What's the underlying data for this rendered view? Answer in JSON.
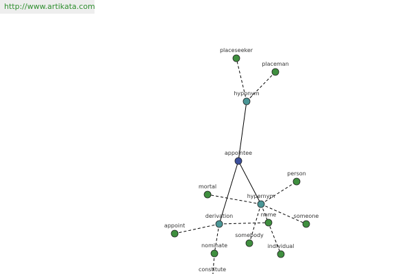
{
  "header": {
    "url": "http://www.artikata.com"
  },
  "nodes": [
    {
      "label": "appointee"
    },
    {
      "label": "hyponym"
    },
    {
      "label": "placeseeker"
    },
    {
      "label": "placeman"
    },
    {
      "label": "hypernym"
    },
    {
      "label": "person"
    },
    {
      "label": "mortal"
    },
    {
      "label": "someone"
    },
    {
      "label": "somebody"
    },
    {
      "label": "individual"
    },
    {
      "label": "derivation"
    },
    {
      "label": "appoint"
    },
    {
      "label": "name"
    },
    {
      "label": "nominate"
    },
    {
      "label": "constitute"
    }
  ]
}
